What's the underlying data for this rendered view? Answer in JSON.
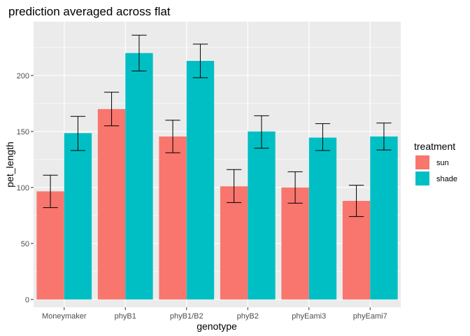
{
  "chart_data": {
    "type": "bar",
    "title": "prediction averaged across flat",
    "xlabel": "genotype",
    "ylabel": "pet_length",
    "categories": [
      "Moneymaker",
      "phyB1",
      "phyB1/B2",
      "phyB2",
      "phyEami3",
      "phyEami7"
    ],
    "series": [
      {
        "name": "sun",
        "color": "#F8766D",
        "values": [
          96.5,
          170,
          145.5,
          101,
          100,
          88
        ],
        "err_low": [
          82,
          155,
          131,
          86.5,
          86,
          74
        ],
        "err_high": [
          111,
          185,
          160,
          116,
          114,
          102
        ]
      },
      {
        "name": "shade",
        "color": "#00BFC4",
        "values": [
          148.5,
          220,
          213,
          150,
          144.5,
          145.5
        ],
        "err_low": [
          133,
          204,
          198,
          135,
          133,
          133.5
        ],
        "err_high": [
          163.5,
          236,
          228,
          164,
          157,
          157.5
        ]
      }
    ],
    "y_ticks": [
      "0",
      "50",
      "100",
      "150",
      "200"
    ],
    "ylim": [
      -7,
      248
    ],
    "grid": true,
    "legend_title": "treatment",
    "legend_position": "right",
    "panel_color": "#EBEBEB",
    "grid_color": "#FFFFFF"
  }
}
